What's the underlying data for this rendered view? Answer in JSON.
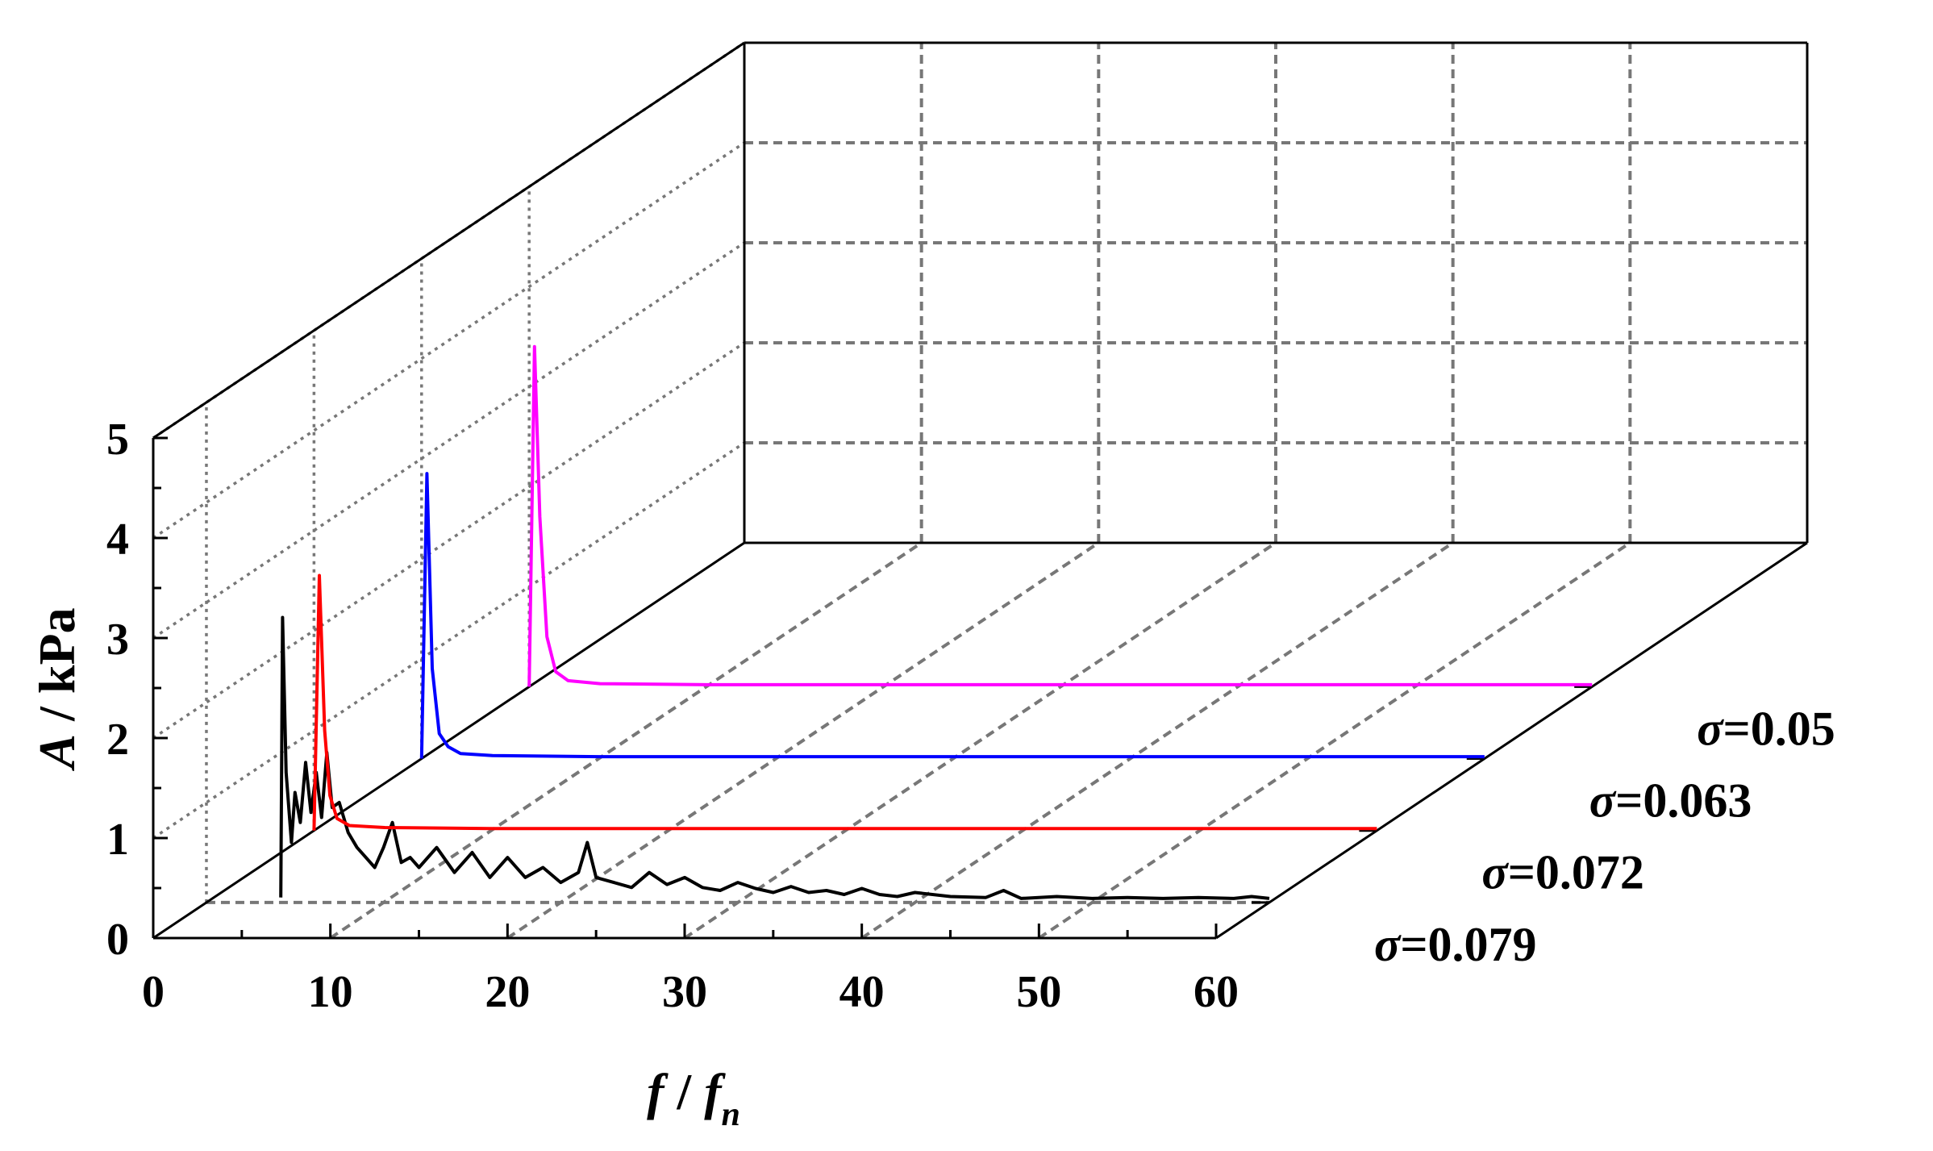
{
  "chart_data": {
    "type": "line",
    "projection": "3d-waterfall",
    "title": "",
    "xlabel": {
      "main": "f",
      "sep": " / ",
      "sym": "f",
      "sub": "n"
    },
    "ylabel": {
      "main": "A",
      "rest": " / kPa"
    },
    "zlabel": "",
    "xlim": [
      0,
      60
    ],
    "ylim": [
      0,
      5
    ],
    "x_ticks": [
      "0",
      "10",
      "20",
      "30",
      "40",
      "50",
      "60"
    ],
    "y_ticks": [
      "0",
      "1",
      "2",
      "3",
      "4",
      "5"
    ],
    "grid": true,
    "series": [
      {
        "name": "σ=0.079",
        "symbol": "σ",
        "value_text": "=0.079",
        "color": "#000000",
        "x": [
          4.2,
          4.3,
          4.5,
          4.8,
          5.0,
          5.3,
          5.6,
          5.9,
          6.2,
          6.5,
          6.8,
          7.1,
          7.5,
          8.0,
          8.5,
          9.0,
          9.5,
          10.0,
          10.5,
          11.0,
          11.5,
          12.0,
          13.0,
          14.0,
          15.0,
          16.0,
          17.0,
          18.0,
          19.0,
          20.0,
          21.0,
          21.5,
          22.0,
          23.0,
          24.0,
          25.0,
          26.0,
          27.0,
          28.0,
          29.0,
          30.0,
          31.0,
          32.0,
          33.0,
          34.0,
          35.0,
          36.0,
          37.0,
          38.0,
          39.0,
          40.0,
          42.0,
          44.0,
          45.0,
          46.0,
          48.0,
          50.0,
          52.0,
          54.0,
          56.0,
          58.0,
          59.0,
          60.0
        ],
        "y": [
          0.05,
          2.85,
          1.3,
          0.6,
          1.1,
          0.8,
          1.4,
          0.9,
          1.3,
          0.85,
          1.5,
          0.95,
          1.0,
          0.7,
          0.55,
          0.45,
          0.35,
          0.55,
          0.8,
          0.4,
          0.45,
          0.35,
          0.55,
          0.3,
          0.5,
          0.25,
          0.45,
          0.25,
          0.35,
          0.2,
          0.3,
          0.6,
          0.25,
          0.2,
          0.15,
          0.3,
          0.18,
          0.25,
          0.15,
          0.12,
          0.2,
          0.14,
          0.1,
          0.16,
          0.1,
          0.12,
          0.08,
          0.14,
          0.08,
          0.06,
          0.1,
          0.06,
          0.05,
          0.12,
          0.04,
          0.06,
          0.04,
          0.05,
          0.04,
          0.05,
          0.04,
          0.06,
          0.04
        ]
      },
      {
        "name": "σ=0.072",
        "symbol": "σ",
        "value_text": "=0.072",
        "color": "#ff0000",
        "x": [
          0,
          0.3,
          0.6,
          0.9,
          1.3,
          2.0,
          4.0,
          10.0,
          20.0,
          40.0,
          60.0
        ],
        "y": [
          0,
          2.55,
          1.0,
          0.35,
          0.12,
          0.05,
          0.03,
          0.02,
          0.02,
          0.02,
          0.02
        ]
      },
      {
        "name": "σ=0.063",
        "symbol": "σ",
        "value_text": "=0.063",
        "color": "#0000ff",
        "x": [
          0,
          0.3,
          0.6,
          1.0,
          1.5,
          2.2,
          4.0,
          10.0,
          20.0,
          40.0,
          60.0
        ],
        "y": [
          0,
          2.85,
          0.9,
          0.25,
          0.12,
          0.05,
          0.03,
          0.02,
          0.02,
          0.02,
          0.02
        ]
      },
      {
        "name": "σ=0.05",
        "symbol": "σ",
        "value_text": "=0.05",
        "color": "#ff00ff",
        "x": [
          0,
          0.3,
          0.6,
          1.0,
          1.5,
          2.2,
          4.0,
          10.0,
          20.0,
          40.0,
          60.0
        ],
        "y": [
          0,
          3.4,
          1.7,
          0.5,
          0.15,
          0.06,
          0.03,
          0.02,
          0.02,
          0.02,
          0.02
        ]
      }
    ]
  }
}
